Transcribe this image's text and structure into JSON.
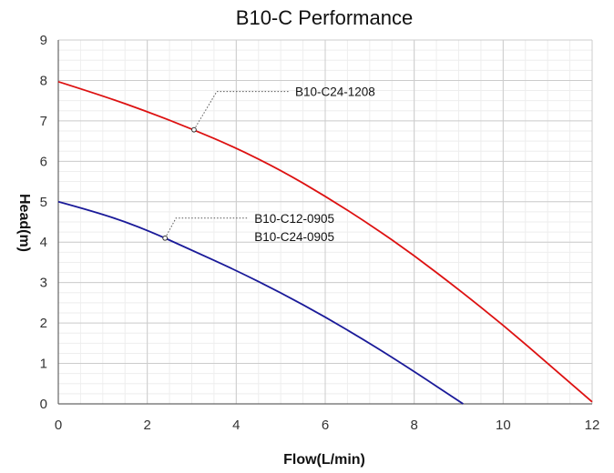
{
  "chart_data": {
    "type": "line",
    "title": "B10-C Performance",
    "xlabel": "Flow(L/min)",
    "ylabel": "Head(m)",
    "xlim": [
      0,
      12
    ],
    "ylim": [
      0,
      9
    ],
    "xticks": [
      0,
      2,
      4,
      6,
      8,
      10,
      12
    ],
    "yticks": [
      0,
      1,
      2,
      3,
      4,
      5,
      6,
      7,
      8,
      9
    ],
    "grid": true,
    "series": [
      {
        "color": "#dd1111",
        "x": [
          0,
          1,
          2,
          3,
          4,
          5,
          6,
          7,
          8,
          9,
          10,
          11,
          12
        ],
        "y": [
          7.97,
          7.62,
          7.23,
          6.8,
          6.33,
          5.78,
          5.14,
          4.44,
          3.67,
          2.83,
          1.95,
          1.0,
          0.05
        ]
      },
      {
        "color": "#1a1a99",
        "x": [
          0,
          1,
          2,
          3,
          4,
          5,
          6,
          7,
          8,
          9.1
        ],
        "y": [
          5.0,
          4.7,
          4.3,
          3.8,
          3.3,
          2.75,
          2.15,
          1.5,
          0.8,
          0.0
        ]
      }
    ],
    "annotations": [
      {
        "text": "B10-C24-1208",
        "x": 3.05,
        "y": 6.78
      },
      {
        "text": "B10-C12-0905",
        "x": 2.4,
        "y": 4.1
      },
      {
        "text": "B10-C24-0905",
        "x": 2.4,
        "y": 4.1
      }
    ]
  }
}
